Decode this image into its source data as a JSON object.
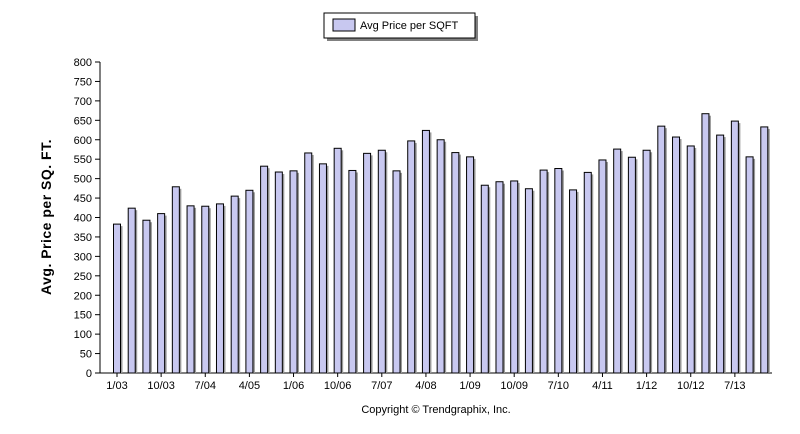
{
  "legend": {
    "label": "Avg Price per SQFT"
  },
  "copyright": "Copyright © Trendgraphix, Inc.",
  "chart_data": {
    "type": "bar",
    "title": "",
    "xlabel": "",
    "ylabel": "Avg. Price per SQ. FT.",
    "ylim": [
      0,
      800
    ],
    "yticks": [
      0,
      50,
      100,
      150,
      200,
      250,
      300,
      350,
      400,
      450,
      500,
      550,
      600,
      650,
      700,
      750,
      800
    ],
    "grid": false,
    "legend_position": "top-center",
    "bar_color": "#c8c8f0",
    "bar_edge_color": "#000000",
    "categories": [
      "1/03",
      "4/03",
      "7/03",
      "10/03",
      "1/04",
      "4/04",
      "7/04",
      "10/04",
      "1/05",
      "4/05",
      "7/05",
      "10/05",
      "1/06",
      "4/06",
      "7/06",
      "10/06",
      "1/07",
      "4/07",
      "7/07",
      "10/07",
      "1/08",
      "4/08",
      "7/08",
      "10/08",
      "1/09",
      "4/09",
      "7/09",
      "10/09",
      "1/10",
      "4/10",
      "7/10",
      "10/10",
      "1/11",
      "4/11",
      "7/11",
      "10/11",
      "1/12",
      "4/12",
      "7/12",
      "10/12",
      "1/13",
      "4/13",
      "7/13",
      "10/13",
      "1/14"
    ],
    "visible_tick_labels": [
      "1/03",
      "10/03",
      "7/04",
      "4/05",
      "1/06",
      "10/06",
      "7/07",
      "4/08",
      "1/09",
      "10/09",
      "7/10",
      "4/11",
      "1/12",
      "10/12",
      "7/13"
    ],
    "series": [
      {
        "name": "Avg Price per SQFT",
        "values": [
          383,
          424,
          393,
          410,
          479,
          430,
          429,
          435,
          455,
          470,
          532,
          517,
          520,
          566,
          538,
          578,
          521,
          565,
          573,
          520,
          597,
          624,
          600,
          567,
          556,
          483,
          492,
          494,
          474,
          522,
          526,
          471,
          516,
          548,
          576,
          555,
          573,
          635,
          607,
          584,
          667,
          612,
          648,
          556,
          633
        ]
      }
    ]
  }
}
